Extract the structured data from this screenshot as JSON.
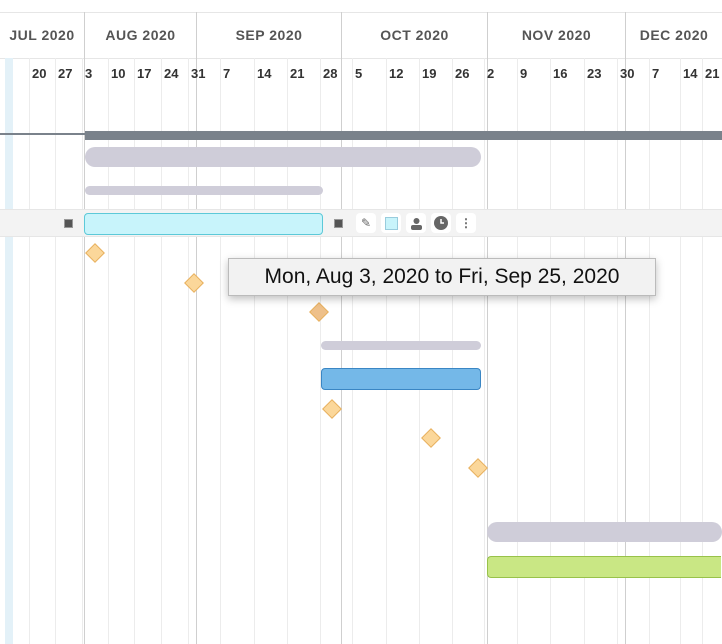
{
  "months": [
    "JUL 2020",
    "AUG 2020",
    "SEP 2020",
    "OCT 2020",
    "NOV 2020",
    "DEC 2020"
  ],
  "weeks": [
    "20",
    "27",
    "3",
    "10",
    "17",
    "24",
    "31",
    "7",
    "14",
    "21",
    "28",
    "5",
    "12",
    "19",
    "26",
    "2",
    "9",
    "16",
    "23",
    "30",
    "7",
    "14",
    "21"
  ],
  "tooltip": "Mon, Aug 3, 2020 to Fri, Sep 25, 2020",
  "toolbar": {
    "icons": [
      "edit-icon",
      "color-icon",
      "assign-user-icon",
      "clock-icon",
      "more-icon"
    ],
    "more": "⋮"
  },
  "colors": {
    "selected_bar": "#c8f4fb",
    "blue_bar": "#74b8e8",
    "green_bar": "#c9e784",
    "summary": "#7a828b",
    "milestone": "#fbd79a"
  }
}
